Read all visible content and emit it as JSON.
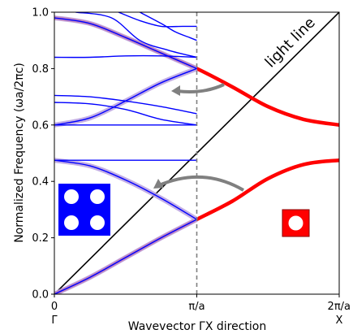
{
  "chart_data": {
    "type": "line",
    "xlabel": "Wavevector ΓX direction",
    "ylabel": "Normalized Frequency (ωa/2πc)",
    "xlim": [
      0,
      2
    ],
    "ylim": [
      0,
      1
    ],
    "x_unit": "π/a",
    "x_ticks": [
      {
        "value": 0,
        "label": "0",
        "point": "Γ"
      },
      {
        "value": 1,
        "label": "π/a"
      },
      {
        "value": 2,
        "label": "2π/a",
        "point": "X"
      }
    ],
    "y_ticks": [
      {
        "value": 0.0,
        "label": "0.0"
      },
      {
        "value": 0.2,
        "label": "0.2"
      },
      {
        "value": 0.4,
        "label": "0.4"
      },
      {
        "value": 0.6,
        "label": "0.6"
      },
      {
        "value": 0.8,
        "label": "0.8"
      },
      {
        "value": 1.0,
        "label": "1.0"
      }
    ],
    "annotations": [
      {
        "text": "light line"
      }
    ],
    "light_line": {
      "x": [
        0,
        2
      ],
      "y": [
        0,
        1
      ],
      "color": "#000000"
    },
    "boundary_line": {
      "x": 1,
      "style": "dashed",
      "color": "#808080"
    },
    "red_bands": {
      "color": "#ff0000",
      "series": [
        {
          "x": [
            0,
            0.25,
            0.5,
            0.75,
            1.0,
            1.25,
            1.5,
            1.75,
            2.0
          ],
          "y": [
            0,
            0.06,
            0.13,
            0.2,
            0.265,
            0.33,
            0.41,
            0.46,
            0.475
          ]
        },
        {
          "x": [
            0,
            0.25,
            0.5,
            0.75,
            1.0,
            1.25,
            1.5,
            1.75,
            2.0
          ],
          "y": [
            0.98,
            0.96,
            0.91,
            0.855,
            0.8,
            0.735,
            0.665,
            0.62,
            0.6
          ]
        }
      ]
    },
    "blue_bands": {
      "color": "#0000ff",
      "series": [
        {
          "x": [
            0,
            0.25,
            0.5,
            0.75,
            1.0
          ],
          "y": [
            0,
            0.06,
            0.13,
            0.2,
            0.265
          ]
        },
        {
          "x": [
            0,
            0.25,
            0.5,
            0.75,
            1.0
          ],
          "y": [
            0.475,
            0.455,
            0.405,
            0.34,
            0.265
          ]
        },
        {
          "x": [
            0,
            0.25,
            0.5,
            0.75,
            1.0
          ],
          "y": [
            0.475,
            0.475,
            0.475,
            0.475,
            0.475
          ]
        },
        {
          "x": [
            0,
            0.25,
            0.5,
            0.75,
            1.0
          ],
          "y": [
            0.6,
            0.625,
            0.685,
            0.75,
            0.8
          ]
        },
        {
          "x": [
            0,
            0.25,
            0.5,
            0.75,
            1.0
          ],
          "y": [
            0.6,
            0.6,
            0.6,
            0.6,
            0.6
          ]
        },
        {
          "x": [
            0,
            0.25,
            0.5,
            0.75,
            1.0
          ],
          "y": [
            0.68,
            0.675,
            0.655,
            0.62,
            0.6
          ]
        },
        {
          "x": [
            0,
            0.25,
            0.5,
            0.75,
            1.0
          ],
          "y": [
            0.705,
            0.7,
            0.685,
            0.665,
            0.64
          ]
        },
        {
          "x": [
            0,
            0.25,
            0.5,
            0.75,
            1.0
          ],
          "y": [
            0.84,
            0.84,
            0.845,
            0.845,
            0.84
          ]
        },
        {
          "x": [
            0,
            0.25,
            0.5,
            0.75,
            1.0
          ],
          "y": [
            0.98,
            0.96,
            0.91,
            0.855,
            0.8
          ]
        },
        {
          "x": [
            0.15,
            0.4,
            0.6,
            0.8,
            1.0
          ],
          "y": [
            1.0,
            0.98,
            0.9,
            0.865,
            0.84
          ]
        },
        {
          "x": [
            0.45,
            0.6,
            0.75,
            0.9,
            1.0
          ],
          "y": [
            1.0,
            0.97,
            0.95,
            0.95,
            0.95
          ]
        },
        {
          "x": [
            0.6,
            0.75,
            0.85,
            0.95,
            1.0
          ],
          "y": [
            1.0,
            0.96,
            0.93,
            0.91,
            0.9
          ]
        }
      ]
    },
    "highlighted_bands": {
      "color": "#b8a0e0",
      "series": [
        {
          "x": [
            0,
            0.25,
            0.5,
            0.75,
            1.0
          ],
          "y": [
            0,
            0.06,
            0.13,
            0.2,
            0.265
          ]
        },
        {
          "x": [
            0,
            0.25,
            0.5,
            0.75,
            1.0
          ],
          "y": [
            0.475,
            0.455,
            0.405,
            0.34,
            0.265
          ]
        },
        {
          "x": [
            0,
            0.25,
            0.5,
            0.75,
            1.0
          ],
          "y": [
            0.6,
            0.625,
            0.685,
            0.75,
            0.8
          ]
        },
        {
          "x": [
            0,
            0.25,
            0.5,
            0.75,
            1.0
          ],
          "y": [
            0.98,
            0.96,
            0.91,
            0.855,
            0.8
          ]
        }
      ]
    },
    "fold_arrows": {
      "color": "#808080"
    },
    "insets": [
      {
        "lattice": "2x2",
        "fill": "#0000ff",
        "hole": "#ffffff"
      },
      {
        "lattice": "1x1",
        "fill": "#ff0000",
        "hole": "#ffffff"
      }
    ]
  }
}
